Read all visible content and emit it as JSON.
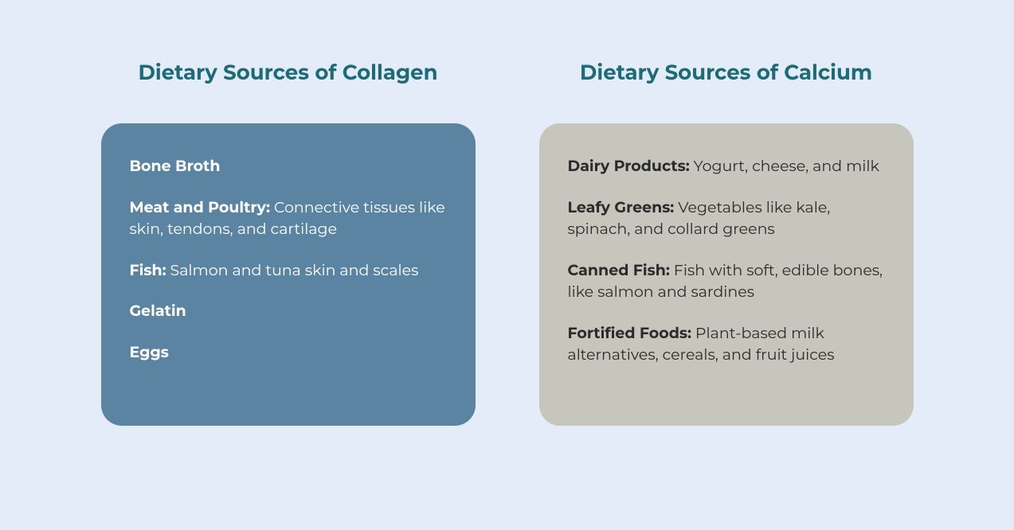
{
  "layout": {
    "background_color": "#e5ecf9",
    "heading_color": "#1d6b77",
    "heading_fontsize": 26,
    "card_border_radius": 26,
    "body_fontsize": 19
  },
  "left": {
    "title": "Dietary Sources of Collagen",
    "card_bg": "#5a84a2",
    "card_text": "#ffffff",
    "items": [
      {
        "label": "Bone Broth",
        "desc": ""
      },
      {
        "label": "Meat and Poultry:",
        "desc": " Connective tissues like skin, tendons, and cartilage"
      },
      {
        "label": "Fish:",
        "desc": " Salmon and tuna skin and scales"
      },
      {
        "label": "Gelatin",
        "desc": ""
      },
      {
        "label": "Eggs",
        "desc": ""
      }
    ]
  },
  "right": {
    "title": "Dietary Sources of Calcium",
    "card_bg": "#c6c6bd",
    "card_text": "#2b2b2b",
    "items": [
      {
        "label": "Dairy Products:",
        "desc": " Yogurt, cheese, and milk"
      },
      {
        "label": "Leafy Greens:",
        "desc": " Vegetables like kale, spinach, and collard greens"
      },
      {
        "label": "Canned Fish:",
        "desc": " Fish with soft, edible bones, like salmon and sardines"
      },
      {
        "label": "Fortified Foods:",
        "desc": " Plant-based milk alternatives, cereals, and fruit juices"
      }
    ]
  }
}
